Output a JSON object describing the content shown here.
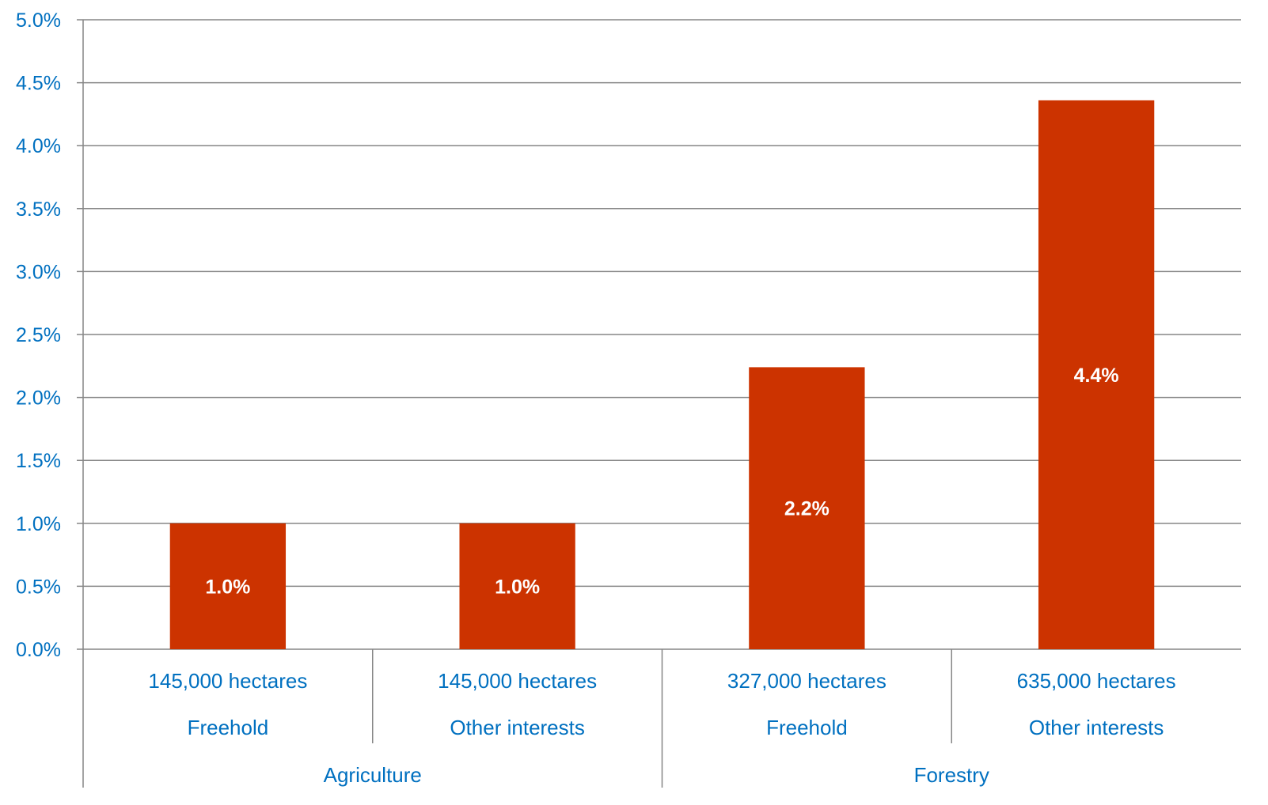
{
  "chart_data": {
    "type": "bar",
    "ylim": [
      0,
      0.05
    ],
    "yticks": [
      0,
      0.005,
      0.01,
      0.015,
      0.02,
      0.025,
      0.03,
      0.035,
      0.04,
      0.045,
      0.05
    ],
    "ytick_labels": [
      "0.0%",
      "0.5%",
      "1.0%",
      "1.5%",
      "2.0%",
      "2.5%",
      "3.0%",
      "3.5%",
      "4.0%",
      "4.5%",
      "5.0%"
    ],
    "grid": true,
    "categories": [
      {
        "area": "145,000 hectares",
        "tenure": "Freehold",
        "sector": "Agriculture"
      },
      {
        "area": "145,000 hectares",
        "tenure": "Other interests",
        "sector": "Agriculture"
      },
      {
        "area": "327,000 hectares",
        "tenure": "Freehold",
        "sector": "Forestry"
      },
      {
        "area": "635,000 hectares",
        "tenure": "Other interests",
        "sector": "Forestry"
      }
    ],
    "groups": [
      "Agriculture",
      "Forestry"
    ],
    "values": [
      0.01,
      0.01,
      0.0224,
      0.0436
    ],
    "data_labels": [
      "1.0%",
      "1.0%",
      "2.2%",
      "4.4%"
    ],
    "bar_color": "#cc3300",
    "text_color": "#0070c0",
    "grid_color": "#868686"
  }
}
